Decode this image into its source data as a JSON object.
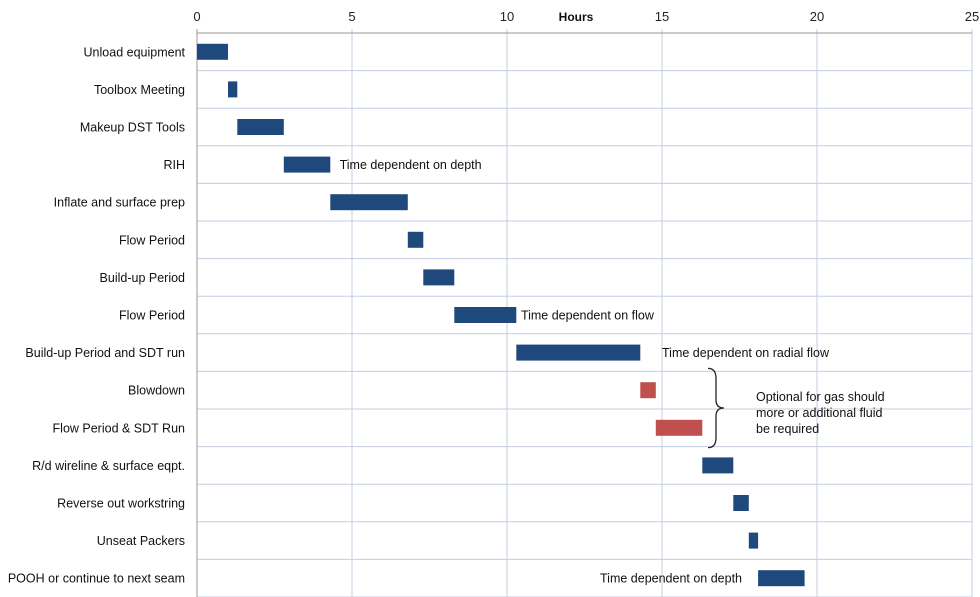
{
  "chart_data": {
    "type": "bar",
    "subtype": "gantt",
    "xlabel": "Hours",
    "xlim": [
      0,
      25
    ],
    "xticks": [
      0,
      5,
      10,
      15,
      20,
      25
    ],
    "grid": true,
    "colors": {
      "standard": "#1f497d",
      "optional": "#c0504d",
      "grid": "#c5cde0",
      "axis": "#999999"
    },
    "tasks": [
      {
        "name": "Unload equipment",
        "start": 0,
        "end": 1.0,
        "kind": "standard"
      },
      {
        "name": "Toolbox Meeting",
        "start": 1.0,
        "end": 1.3,
        "kind": "standard"
      },
      {
        "name": "Makeup DST Tools",
        "start": 1.3,
        "end": 2.8,
        "kind": "standard"
      },
      {
        "name": "RIH",
        "start": 2.8,
        "end": 4.3,
        "kind": "standard"
      },
      {
        "name": "Inflate and surface prep",
        "start": 4.3,
        "end": 6.8,
        "kind": "standard"
      },
      {
        "name": "Flow Period",
        "start": 6.8,
        "end": 7.3,
        "kind": "standard"
      },
      {
        "name": "Build-up Period",
        "start": 7.3,
        "end": 8.3,
        "kind": "standard"
      },
      {
        "name": "Flow Period",
        "start": 8.3,
        "end": 10.3,
        "kind": "standard"
      },
      {
        "name": "Build-up Period and SDT run",
        "start": 10.3,
        "end": 14.3,
        "kind": "standard"
      },
      {
        "name": "Blowdown",
        "start": 14.3,
        "end": 14.8,
        "kind": "optional"
      },
      {
        "name": "Flow Period & SDT Run",
        "start": 14.8,
        "end": 16.3,
        "kind": "optional"
      },
      {
        "name": "R/d wireline & surface eqpt.",
        "start": 16.3,
        "end": 17.3,
        "kind": "standard"
      },
      {
        "name": "Reverse out workstring",
        "start": 17.3,
        "end": 17.8,
        "kind": "standard"
      },
      {
        "name": "Unseat Packers",
        "start": 17.8,
        "end": 18.1,
        "kind": "standard"
      },
      {
        "name": "POOH or continue to next seam",
        "start": 18.1,
        "end": 19.6,
        "kind": "standard"
      }
    ],
    "annotations": [
      {
        "text": "Time dependent on depth",
        "task_index": 3,
        "x": 4.6
      },
      {
        "text": "Time dependent on flow",
        "task_index": 7,
        "x": 10.45
      },
      {
        "text": "Time dependent on radial flow",
        "task_index": 8,
        "x": 15.0
      },
      {
        "text": "Time dependent on depth",
        "task_index": 14,
        "x": 13.0
      }
    ],
    "group_note": {
      "lines": [
        "Optional for gas should",
        "more or additional fluid",
        "be required"
      ],
      "task_indices": [
        9,
        10
      ]
    }
  }
}
